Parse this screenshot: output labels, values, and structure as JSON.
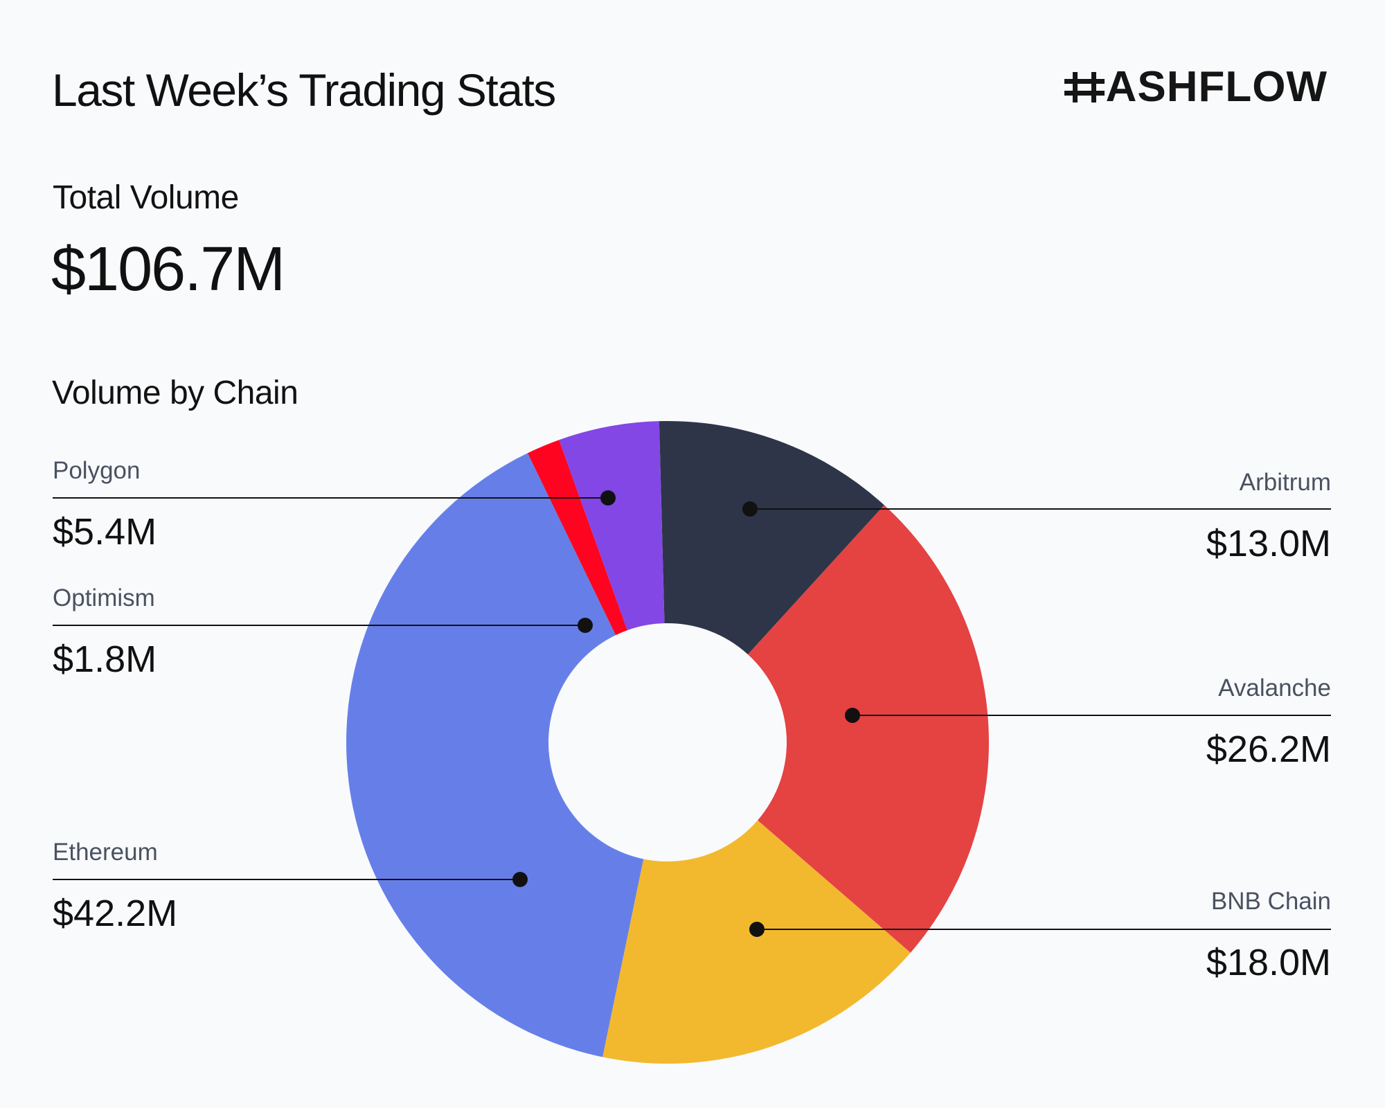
{
  "header": {
    "title": "Last Week’s Trading Stats",
    "brand": "ASHFLOW"
  },
  "summary": {
    "total_label": "Total Volume",
    "total_value": "$106.7M"
  },
  "section_label": "Volume by Chain",
  "colors": {
    "background": "#f9fafc",
    "Arbitrum": "#2e3548",
    "Avalanche": "#e54242",
    "BNB Chain": "#f2b92f",
    "Ethereum": "#667fe8",
    "Optimism": "#ff0420",
    "Polygon": "#8247e5"
  },
  "chart_data": {
    "type": "pie",
    "donut": true,
    "unit": "$M",
    "slices": [
      {
        "name": "Arbitrum",
        "value": 13.0,
        "label": "$13.0M",
        "color": "#2e3548"
      },
      {
        "name": "Avalanche",
        "value": 26.2,
        "label": "$26.2M",
        "color": "#e54242"
      },
      {
        "name": "BNB Chain",
        "value": 18.0,
        "label": "$18.0M",
        "color": "#f2b92f"
      },
      {
        "name": "Ethereum",
        "value": 42.2,
        "label": "$42.2M",
        "color": "#667fe8"
      },
      {
        "name": "Optimism",
        "value": 1.8,
        "label": "$1.8M",
        "color": "#ff0420"
      },
      {
        "name": "Polygon",
        "value": 5.4,
        "label": "$5.4M",
        "color": "#8247e5"
      }
    ]
  }
}
